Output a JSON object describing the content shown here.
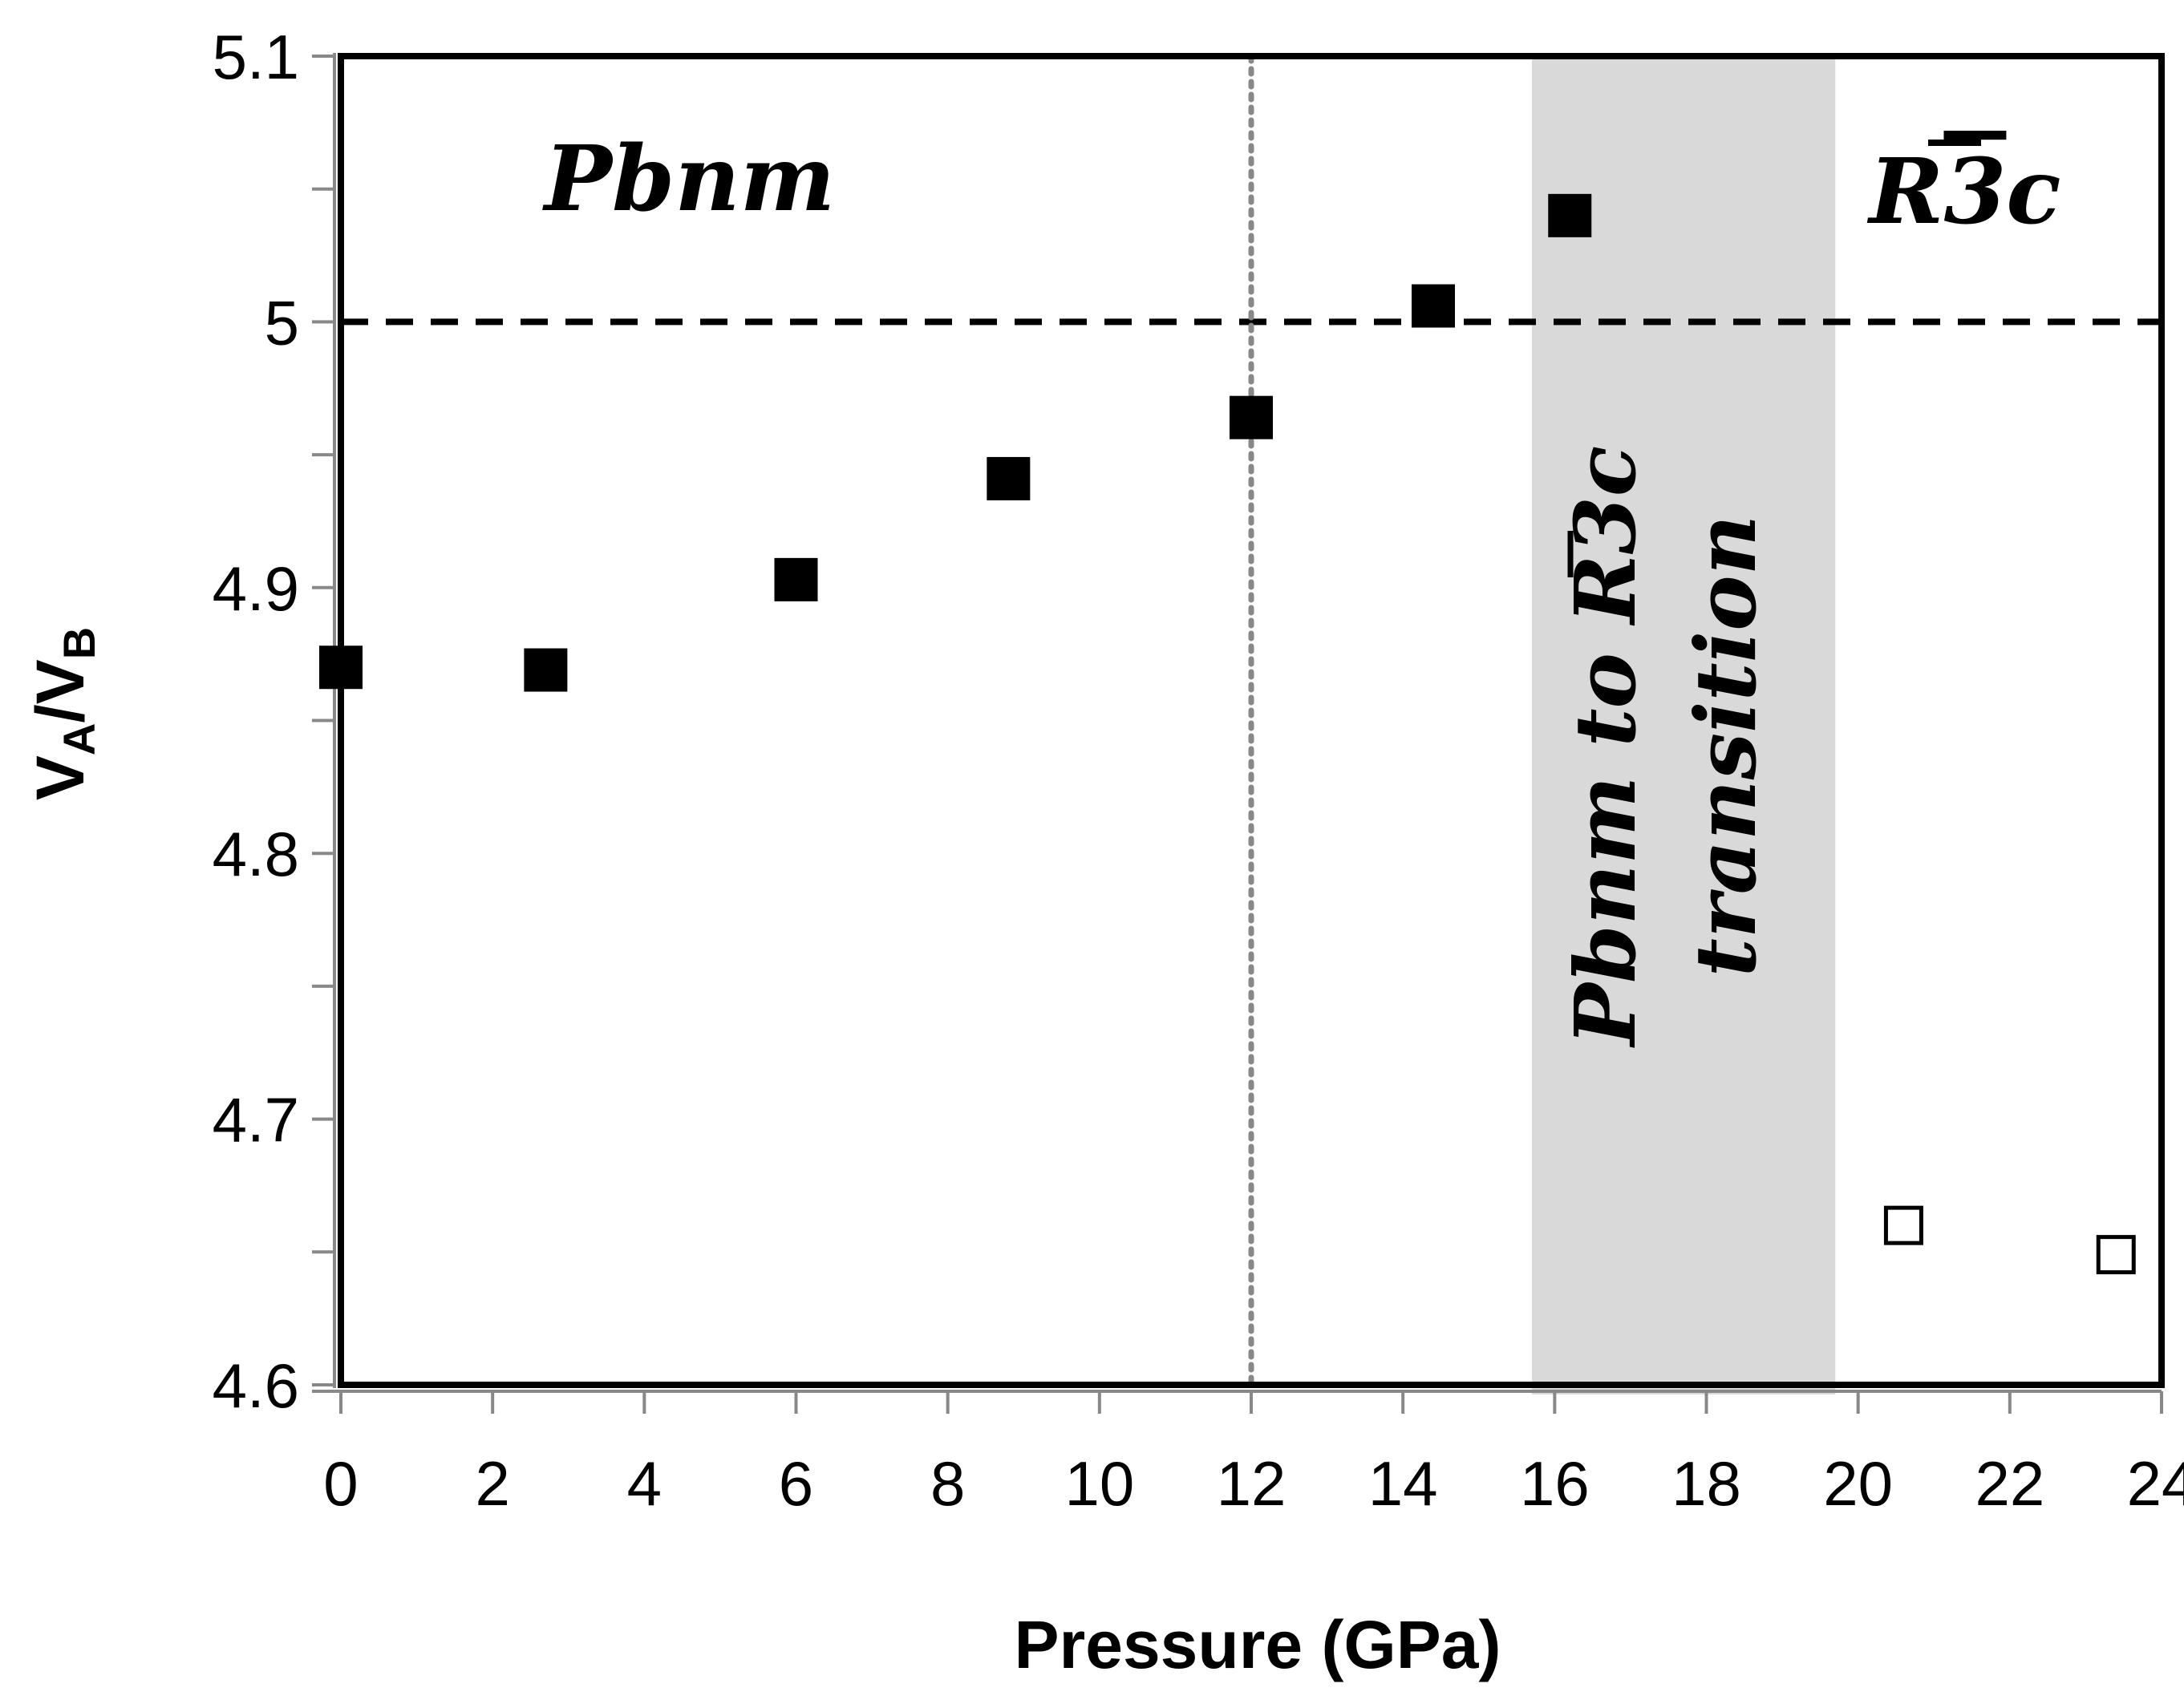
{
  "chart_data": {
    "type": "scatter",
    "title": "",
    "xlabel": "Pressure (GPa)",
    "ylabel_main": "V",
    "ylabel_sub_a": "A",
    "ylabel_slash": "/",
    "ylabel_sub_b": "B",
    "xlim": [
      0,
      24
    ],
    "ylim": [
      4.6,
      5.1
    ],
    "xticks": [
      0,
      2,
      4,
      6,
      8,
      10,
      12,
      14,
      16,
      18,
      20,
      22,
      24
    ],
    "yticks": [
      4.6,
      4.7,
      4.8,
      4.9,
      5.0,
      5.1
    ],
    "ytick_labels": [
      "4.6",
      "4.7",
      "4.8",
      "4.9",
      "5",
      "5.1"
    ],
    "yminor_step": 0.05,
    "series": [
      {
        "name": "Pbnm",
        "marker": "filled-square",
        "color": "#000000",
        "x": [
          0.0,
          2.7,
          6.0,
          8.8,
          12.0,
          14.4,
          16.2
        ],
        "y": [
          4.87,
          4.869,
          4.903,
          4.941,
          4.964,
          5.006,
          5.04
        ]
      },
      {
        "name": "R-3c",
        "marker": "open-square",
        "color": "#000000",
        "x": [
          20.6,
          23.4
        ],
        "y": [
          4.66,
          4.649
        ]
      }
    ],
    "reference_lines": {
      "horizontal_dashed_y": 5.0,
      "vertical_dotted_x": 12.0
    },
    "transition_band": {
      "x_start": 15.7,
      "x_end": 19.7,
      "color": "#d9d9d9",
      "label_prefix": "Pbnm to R",
      "label_digit": "3",
      "label_suffix": "c",
      "label_line2": "transition"
    },
    "annotations": {
      "left_phase": "Pbnm",
      "right_phase_prefix": "R",
      "right_phase_digit": "3",
      "right_phase_suffix": "c"
    }
  }
}
